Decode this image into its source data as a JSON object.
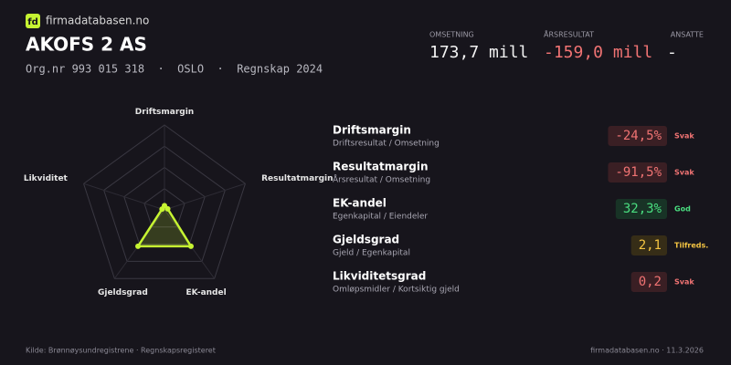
{
  "header": {
    "logo": "fd",
    "site": "firmadatabasen.no",
    "title": "AKOFS 2 AS",
    "subtitle": "Org.nr 993 015 318  ·  OSLO  ·  Regnskap 2024"
  },
  "stats": [
    {
      "label": "OMSETNING",
      "value": "173,7 mill",
      "color": "#f2f2f2"
    },
    {
      "label": "ÅRSRESULTAT",
      "value": "-159,0 mill",
      "color": "#f07373"
    },
    {
      "label": "ANSATTE",
      "value": "-",
      "color": "#f2f2f2"
    }
  ],
  "chart_data": {
    "type": "radar",
    "categories": [
      "Driftsmargin",
      "Resultatmargin",
      "EK-andel",
      "Gjeldsgrad",
      "Likviditet"
    ],
    "series": [
      {
        "color": "#c6f432",
        "values": [
          5,
          4,
          53,
          53,
          3
        ]
      }
    ],
    "rlim": [
      0,
      100
    ],
    "rticks": [
      25,
      50,
      75,
      100
    ],
    "grid": true
  },
  "metrics": [
    {
      "name": "Driftsmargin",
      "formula": "Driftsresultat / Omsetning",
      "value": "-24,5%",
      "status": "Svak",
      "color": "#f07373",
      "box": "#3a1f24"
    },
    {
      "name": "Resultatmargin",
      "formula": "Årsresultat / Omsetning",
      "value": "-91,5%",
      "status": "Svak",
      "color": "#f07373",
      "box": "#3a1f24"
    },
    {
      "name": "EK-andel",
      "formula": "Egenkapital / Eiendeler",
      "value": "32,3%",
      "status": "God",
      "color": "#4ade80",
      "box": "#183326"
    },
    {
      "name": "Gjeldsgrad",
      "formula": "Gjeld / Egenkapital",
      "value": "2,1",
      "status": "Tilfreds.",
      "color": "#f5c542",
      "box": "#362d17"
    },
    {
      "name": "Likviditetsgrad",
      "formula": "Omløpsmidler / Kortsiktig gjeld",
      "value": "0,2",
      "status": "Svak",
      "color": "#f07373",
      "box": "#3a1f24"
    }
  ],
  "footer": {
    "source": "Kilde: Brønnøysundregistrene · Regnskapsregisteret",
    "site_date": "firmadatabasen.no · 11.3.2026"
  }
}
